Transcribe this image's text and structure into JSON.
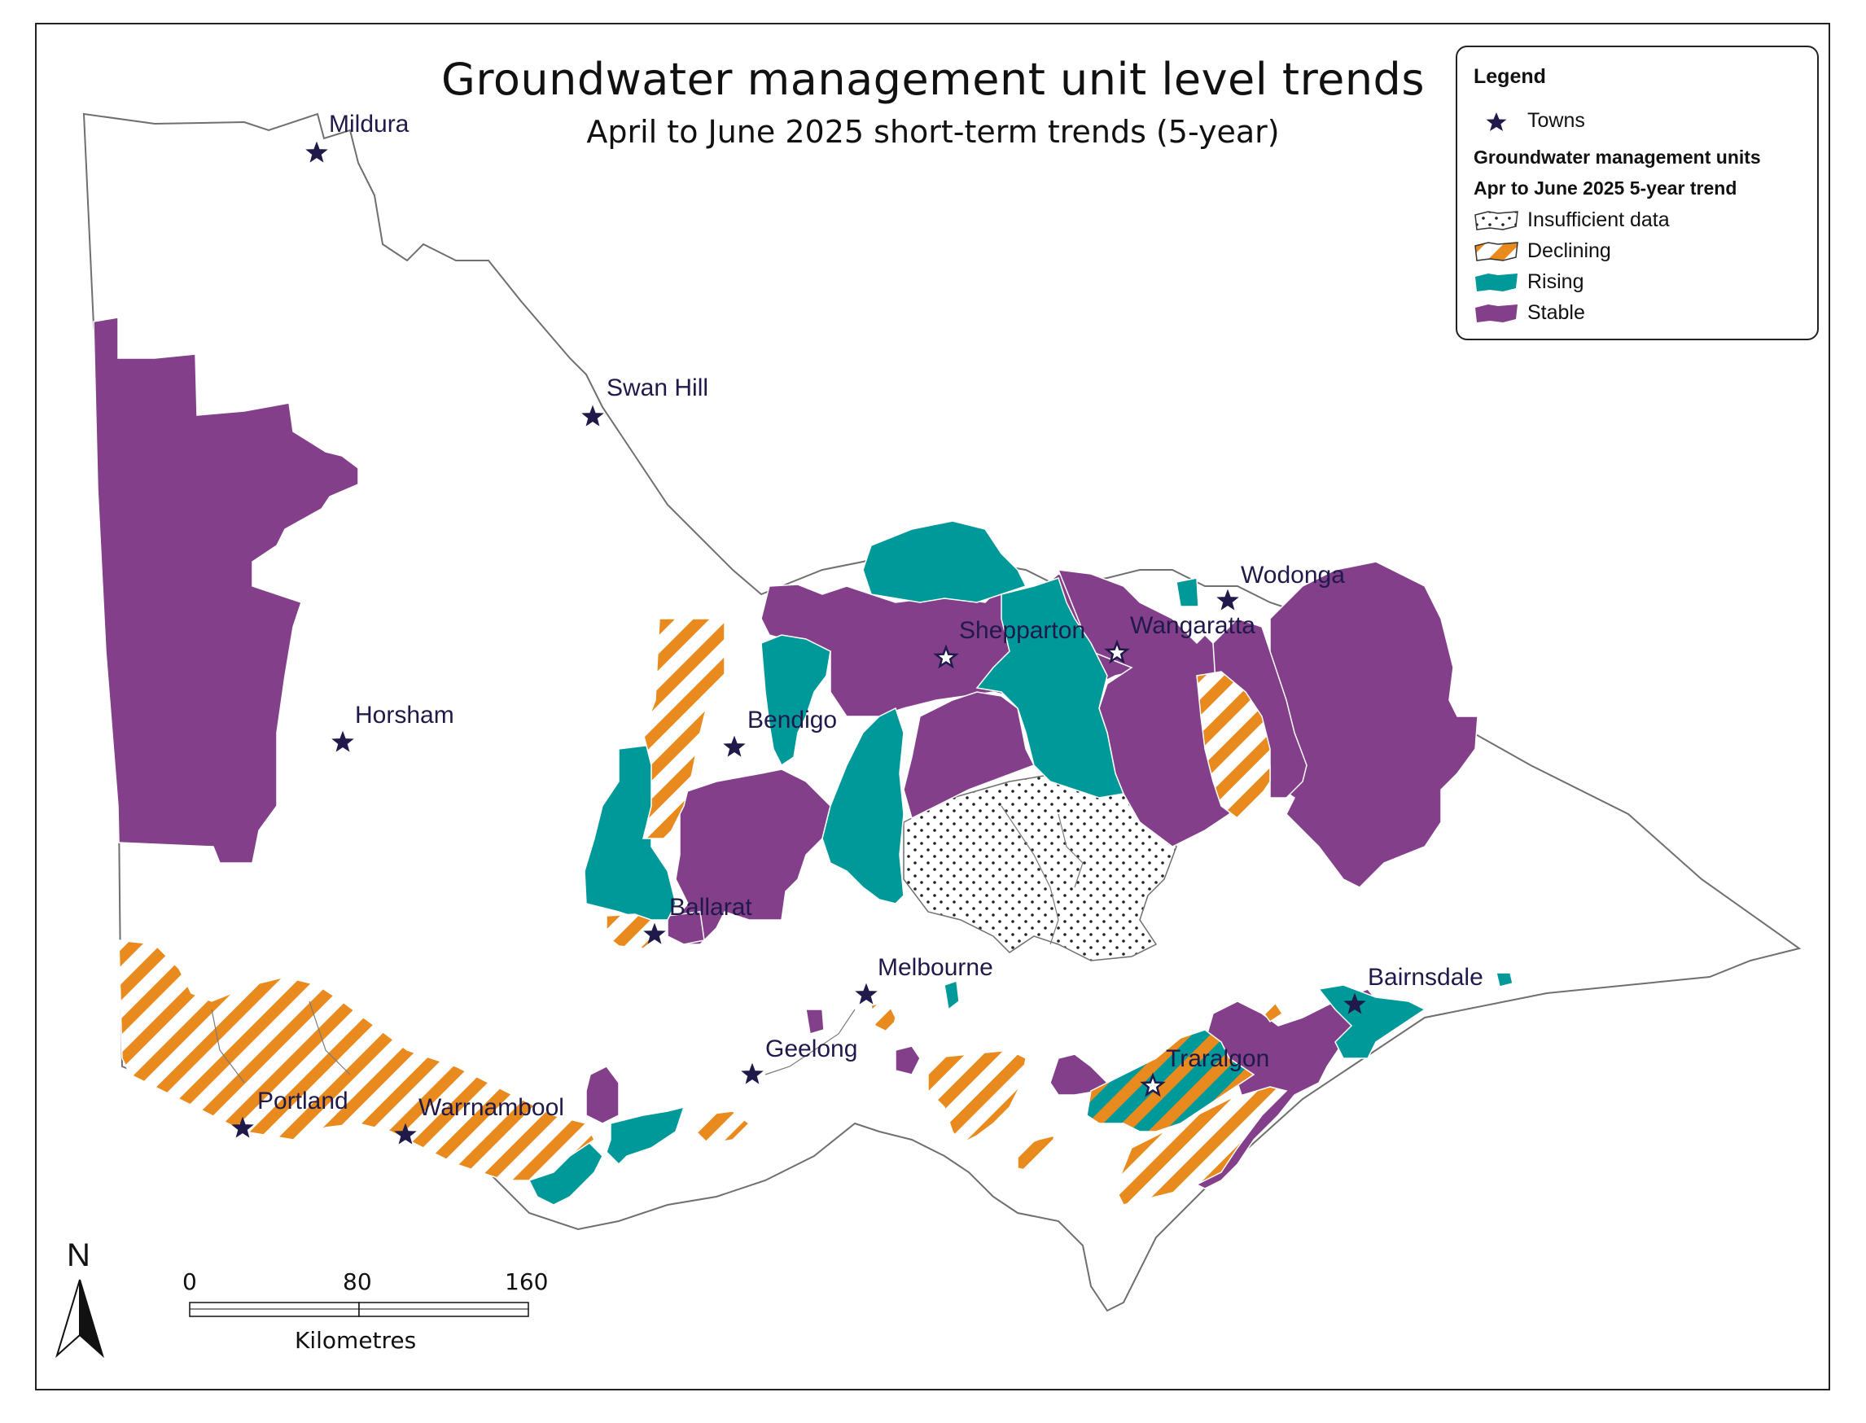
{
  "title": "Groundwater management unit level trends",
  "subtitle": "April to June 2025 short-term trends (5-year)",
  "legend": {
    "title": "Legend",
    "towns_label": "Towns",
    "units_heading": "Groundwater management units",
    "trend_heading": "Apr to June 2025 5-year trend",
    "items": [
      {
        "label": "Insufficient data",
        "style": "dotted"
      },
      {
        "label": "Declining",
        "style": "hatched"
      },
      {
        "label": "Rising",
        "style": "rising"
      },
      {
        "label": "Stable",
        "style": "stable"
      }
    ]
  },
  "colors": {
    "stable": "#843f8a",
    "rising": "#00999a",
    "declining": "#e88a1e",
    "outline": "#6f6f6f",
    "town_star": "#1f1a4a"
  },
  "towns": [
    {
      "name": "Mildura"
    },
    {
      "name": "Swan Hill"
    },
    {
      "name": "Horsham"
    },
    {
      "name": "Bendigo"
    },
    {
      "name": "Shepparton"
    },
    {
      "name": "Wangaratta"
    },
    {
      "name": "Wodonga"
    },
    {
      "name": "Ballarat"
    },
    {
      "name": "Melbourne"
    },
    {
      "name": "Geelong"
    },
    {
      "name": "Bairnsdale"
    },
    {
      "name": "Traralgon"
    },
    {
      "name": "Portland"
    },
    {
      "name": "Warrnambool"
    }
  ],
  "scale_bar": {
    "ticks": [
      "0",
      "80",
      "160"
    ],
    "unit": "Kilometres"
  },
  "north_label": "N"
}
